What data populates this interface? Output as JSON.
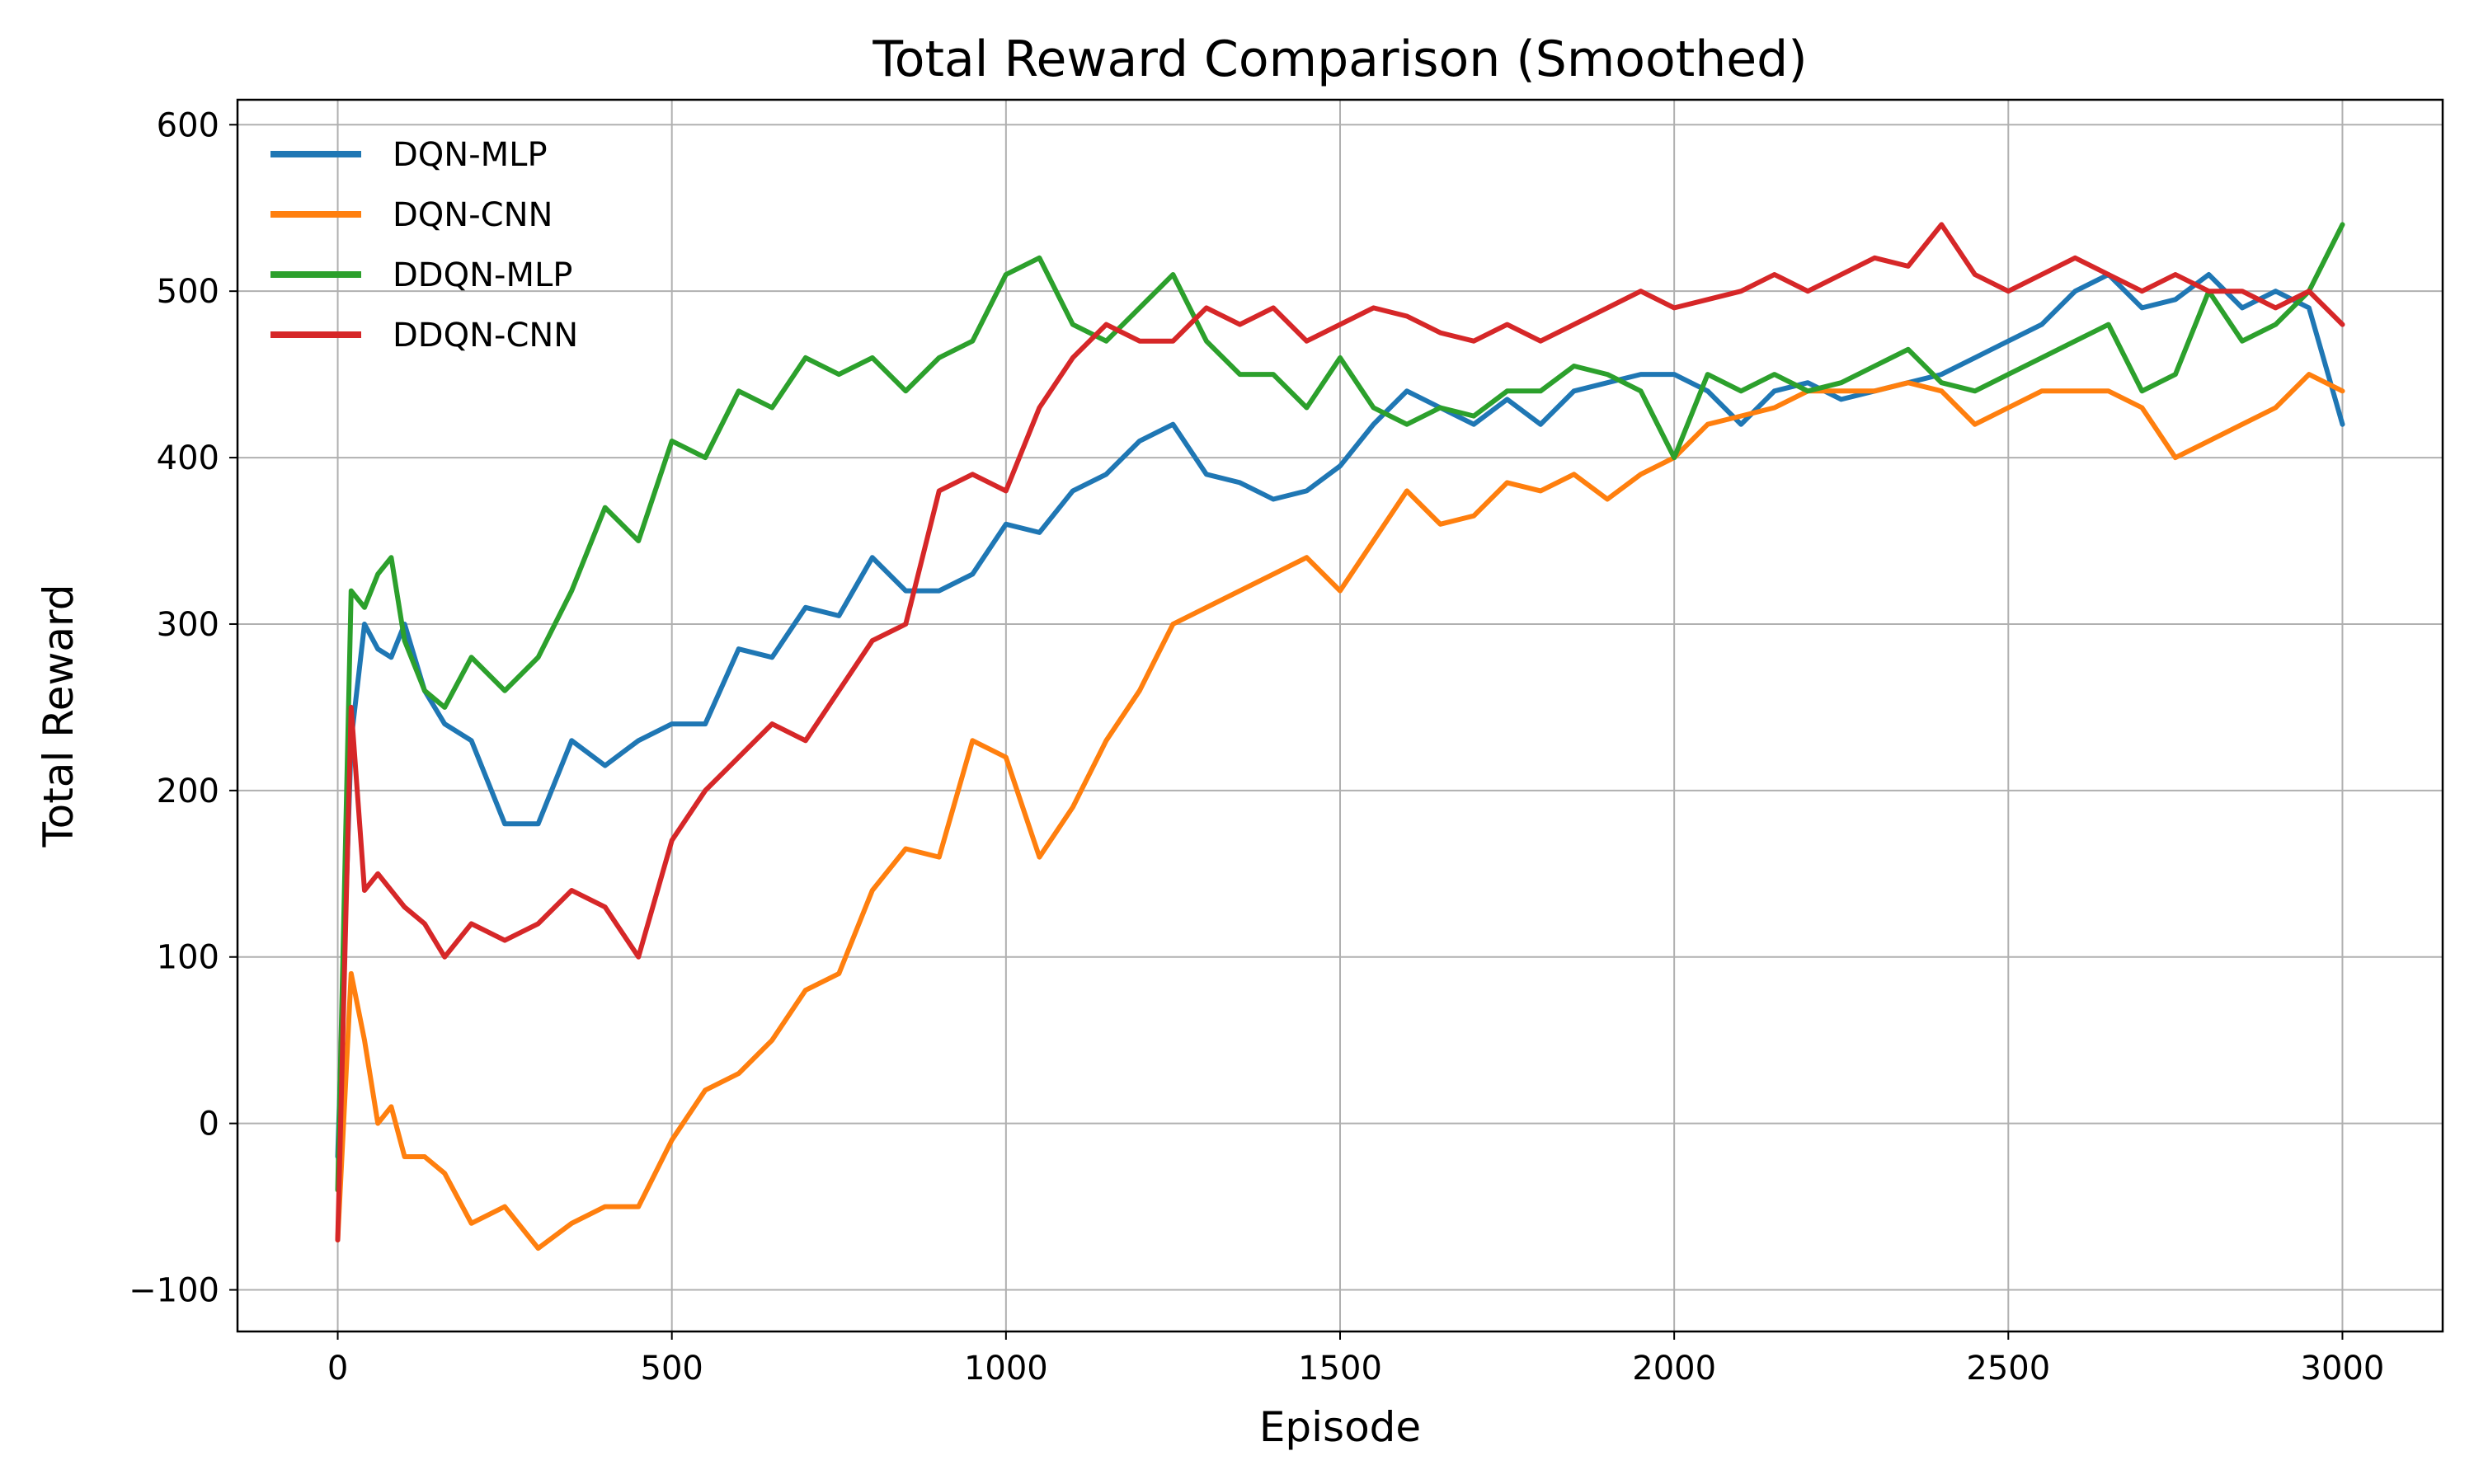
{
  "chart_data": {
    "type": "line",
    "title": "Total Reward Comparison (Smoothed)",
    "xlabel": "Episode",
    "ylabel": "Total Reward",
    "xlim": [
      -150,
      3150
    ],
    "ylim": [
      -125,
      615
    ],
    "xticks": [
      0,
      500,
      1000,
      1500,
      2000,
      2500,
      3000
    ],
    "yticks": [
      -100,
      0,
      100,
      200,
      300,
      400,
      500,
      600
    ],
    "xtick_labels": [
      "0",
      "500",
      "1000",
      "1500",
      "2000",
      "2500",
      "3000"
    ],
    "ytick_labels": [
      "−100",
      "0",
      "100",
      "200",
      "300",
      "400",
      "500",
      "600"
    ],
    "grid": true,
    "legend_position": "upper-left",
    "series": [
      {
        "name": "DQN-MLP",
        "color": "#1f77b4",
        "x": [
          0,
          20,
          40,
          60,
          80,
          100,
          130,
          160,
          200,
          250,
          300,
          350,
          400,
          450,
          500,
          550,
          600,
          650,
          700,
          750,
          800,
          850,
          900,
          950,
          1000,
          1050,
          1100,
          1150,
          1200,
          1250,
          1300,
          1350,
          1400,
          1450,
          1500,
          1550,
          1600,
          1650,
          1700,
          1750,
          1800,
          1850,
          1900,
          1950,
          2000,
          2050,
          2100,
          2150,
          2200,
          2250,
          2300,
          2350,
          2400,
          2450,
          2500,
          2550,
          2600,
          2650,
          2700,
          2750,
          2800,
          2850,
          2900,
          2950,
          3000
        ],
        "y": [
          -20,
          230,
          300,
          285,
          280,
          300,
          260,
          240,
          230,
          180,
          180,
          230,
          215,
          230,
          240,
          240,
          285,
          280,
          310,
          305,
          340,
          320,
          320,
          330,
          360,
          355,
          380,
          390,
          410,
          420,
          390,
          385,
          375,
          380,
          395,
          420,
          440,
          430,
          420,
          435,
          420,
          440,
          445,
          450,
          450,
          440,
          420,
          440,
          445,
          435,
          440,
          445,
          450,
          460,
          470,
          480,
          500,
          510,
          490,
          495,
          510,
          490,
          500,
          490,
          420
        ]
      },
      {
        "name": "DQN-CNN",
        "color": "#ff7f0e",
        "x": [
          0,
          20,
          40,
          60,
          80,
          100,
          130,
          160,
          200,
          250,
          300,
          350,
          400,
          450,
          500,
          550,
          600,
          650,
          700,
          750,
          800,
          850,
          900,
          950,
          1000,
          1050,
          1100,
          1150,
          1200,
          1250,
          1300,
          1350,
          1400,
          1450,
          1500,
          1550,
          1600,
          1650,
          1700,
          1750,
          1800,
          1850,
          1900,
          1950,
          2000,
          2050,
          2100,
          2150,
          2200,
          2250,
          2300,
          2350,
          2400,
          2450,
          2500,
          2550,
          2600,
          2650,
          2700,
          2750,
          2800,
          2850,
          2900,
          2950,
          3000
        ],
        "y": [
          -70,
          90,
          50,
          0,
          10,
          -20,
          -20,
          -30,
          -60,
          -50,
          -75,
          -60,
          -50,
          -50,
          -10,
          20,
          30,
          50,
          80,
          90,
          140,
          165,
          160,
          230,
          220,
          160,
          190,
          230,
          260,
          300,
          310,
          320,
          330,
          340,
          320,
          350,
          380,
          360,
          365,
          385,
          380,
          390,
          375,
          390,
          400,
          420,
          425,
          430,
          440,
          440,
          440,
          445,
          440,
          420,
          430,
          440,
          440,
          440,
          430,
          400,
          410,
          420,
          430,
          450,
          440
        ]
      },
      {
        "name": "DDQN-MLP",
        "color": "#2ca02c",
        "x": [
          0,
          20,
          40,
          60,
          80,
          100,
          130,
          160,
          200,
          250,
          300,
          350,
          400,
          450,
          500,
          550,
          600,
          650,
          700,
          750,
          800,
          850,
          900,
          950,
          1000,
          1050,
          1100,
          1150,
          1200,
          1250,
          1300,
          1350,
          1400,
          1450,
          1500,
          1550,
          1600,
          1650,
          1700,
          1750,
          1800,
          1850,
          1900,
          1950,
          2000,
          2050,
          2100,
          2150,
          2200,
          2250,
          2300,
          2350,
          2400,
          2450,
          2500,
          2550,
          2600,
          2650,
          2700,
          2750,
          2800,
          2850,
          2900,
          2950,
          3000
        ],
        "y": [
          -40,
          320,
          310,
          330,
          340,
          290,
          260,
          250,
          280,
          260,
          280,
          320,
          370,
          350,
          410,
          400,
          440,
          430,
          460,
          450,
          460,
          440,
          460,
          470,
          510,
          520,
          480,
          470,
          490,
          510,
          470,
          450,
          450,
          430,
          460,
          430,
          420,
          430,
          425,
          440,
          440,
          455,
          450,
          440,
          400,
          450,
          440,
          450,
          440,
          445,
          455,
          465,
          445,
          440,
          450,
          460,
          470,
          480,
          440,
          450,
          500,
          470,
          480,
          500,
          540
        ]
      },
      {
        "name": "DDQN-CNN",
        "color": "#d62728",
        "x": [
          0,
          20,
          40,
          60,
          80,
          100,
          130,
          160,
          200,
          250,
          300,
          350,
          400,
          450,
          500,
          550,
          600,
          650,
          700,
          750,
          800,
          850,
          900,
          950,
          1000,
          1050,
          1100,
          1150,
          1200,
          1250,
          1300,
          1350,
          1400,
          1450,
          1500,
          1550,
          1600,
          1650,
          1700,
          1750,
          1800,
          1850,
          1900,
          1950,
          2000,
          2050,
          2100,
          2150,
          2200,
          2250,
          2300,
          2350,
          2400,
          2450,
          2500,
          2550,
          2600,
          2650,
          2700,
          2750,
          2800,
          2850,
          2900,
          2950,
          3000
        ],
        "y": [
          -70,
          250,
          140,
          150,
          140,
          130,
          120,
          100,
          120,
          110,
          120,
          140,
          130,
          100,
          170,
          200,
          220,
          240,
          230,
          260,
          290,
          300,
          380,
          390,
          380,
          430,
          460,
          480,
          470,
          470,
          490,
          480,
          490,
          470,
          480,
          490,
          485,
          475,
          470,
          480,
          470,
          480,
          490,
          500,
          490,
          495,
          500,
          510,
          500,
          510,
          520,
          515,
          540,
          510,
          500,
          510,
          520,
          510,
          500,
          510,
          500,
          500,
          490,
          500,
          480
        ]
      }
    ]
  }
}
